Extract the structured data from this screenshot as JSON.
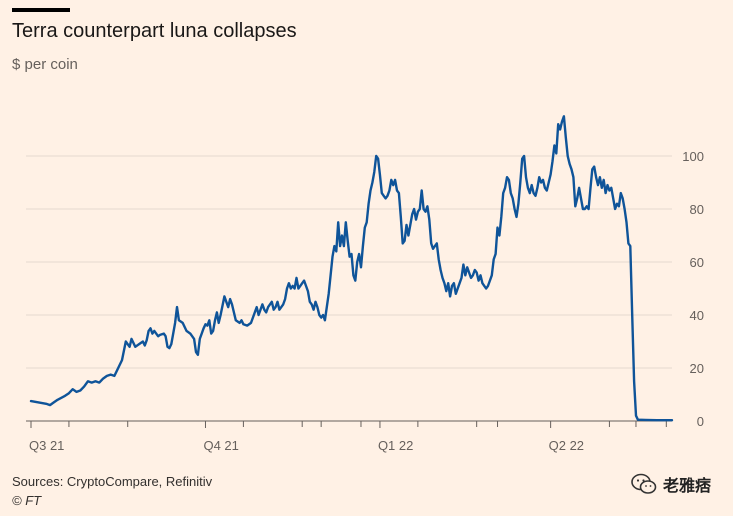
{
  "header": {
    "title": "Terra counterpart luna collapses",
    "subtitle": "$ per coin"
  },
  "footer": {
    "source": "Sources: CryptoCompare, Refinitiv",
    "copyright": "© FT"
  },
  "watermark": {
    "text": "老雅痞",
    "icon": "wechat-icon"
  },
  "colors": {
    "background": "#fff1e5",
    "line": "#0f5499",
    "grid": "#e6d9ce",
    "axis": "#66605c",
    "tick_text": "#66605c"
  },
  "chart_data": {
    "type": "line",
    "title": "Terra counterpart luna collapses",
    "ylabel": "$ per coin",
    "xlabel": "",
    "xlim": [
      0,
      338
    ],
    "ylim": [
      0,
      120
    ],
    "yticks": [
      0,
      20,
      40,
      60,
      80,
      100
    ],
    "grid": true,
    "xticks": [
      {
        "label": "Q3 21",
        "day": 0
      },
      {
        "label": "Q4 21",
        "day": 92
      },
      {
        "label": "Q1 22",
        "day": 184
      },
      {
        "label": "Q2 22",
        "day": 274
      }
    ],
    "minor_xticks": [
      20,
      51,
      112,
      143,
      153,
      174,
      204,
      235,
      246,
      305,
      319,
      335
    ],
    "series": [
      {
        "name": "Luna",
        "points": [
          [
            0,
            7.5
          ],
          [
            4,
            7
          ],
          [
            8,
            6.5
          ],
          [
            10,
            6
          ],
          [
            12,
            7
          ],
          [
            14,
            8
          ],
          [
            18,
            9.5
          ],
          [
            20,
            10.5
          ],
          [
            22,
            12
          ],
          [
            24,
            11
          ],
          [
            26,
            11.5
          ],
          [
            28,
            13
          ],
          [
            30,
            15
          ],
          [
            32,
            14.5
          ],
          [
            34,
            15
          ],
          [
            36,
            14.5
          ],
          [
            38,
            16
          ],
          [
            40,
            17
          ],
          [
            42,
            17.5
          ],
          [
            44,
            17
          ],
          [
            46,
            20
          ],
          [
            48,
            23
          ],
          [
            50,
            30
          ],
          [
            52,
            28
          ],
          [
            53,
            31
          ],
          [
            55,
            28
          ],
          [
            57,
            29
          ],
          [
            59,
            30
          ],
          [
            60,
            28.5
          ],
          [
            61,
            30.5
          ],
          [
            62,
            34
          ],
          [
            63,
            35
          ],
          [
            64,
            33
          ],
          [
            65,
            34
          ],
          [
            67,
            32
          ],
          [
            68,
            32.5
          ],
          [
            70,
            33
          ],
          [
            71,
            32
          ],
          [
            72,
            28
          ],
          [
            73,
            27.5
          ],
          [
            74,
            29
          ],
          [
            75,
            33
          ],
          [
            76,
            37
          ],
          [
            77,
            43
          ],
          [
            78,
            38
          ],
          [
            80,
            37
          ],
          [
            82,
            34
          ],
          [
            84,
            33
          ],
          [
            86,
            31
          ],
          [
            87,
            26
          ],
          [
            88,
            25
          ],
          [
            89,
            31
          ],
          [
            90,
            33
          ],
          [
            91,
            35
          ],
          [
            92,
            36.5
          ],
          [
            93,
            36
          ],
          [
            94,
            38
          ],
          [
            95,
            33
          ],
          [
            96,
            34
          ],
          [
            97,
            38
          ],
          [
            98,
            41
          ],
          [
            99,
            37
          ],
          [
            100,
            40
          ],
          [
            102,
            47
          ],
          [
            103,
            45
          ],
          [
            104,
            43
          ],
          [
            105,
            46
          ],
          [
            106,
            44
          ],
          [
            107,
            41
          ],
          [
            108,
            38
          ],
          [
            110,
            37
          ],
          [
            111,
            38
          ],
          [
            112,
            36.5
          ],
          [
            114,
            36
          ],
          [
            116,
            37
          ],
          [
            118,
            41
          ],
          [
            119,
            43
          ],
          [
            120,
            40
          ],
          [
            121,
            42
          ],
          [
            122,
            44
          ],
          [
            123,
            42
          ],
          [
            124,
            41
          ],
          [
            125,
            43
          ],
          [
            127,
            45
          ],
          [
            128,
            42
          ],
          [
            129,
            43
          ],
          [
            130,
            45
          ],
          [
            131,
            42
          ],
          [
            132,
            43
          ],
          [
            133,
            44
          ],
          [
            134,
            46
          ],
          [
            135,
            50
          ],
          [
            136,
            52
          ],
          [
            137,
            50
          ],
          [
            138,
            51
          ],
          [
            139,
            50
          ],
          [
            140,
            54
          ],
          [
            141,
            50
          ],
          [
            142,
            51
          ],
          [
            143,
            52
          ],
          [
            144,
            53
          ],
          [
            145,
            51
          ],
          [
            146,
            49
          ],
          [
            147,
            45
          ],
          [
            148,
            44
          ],
          [
            149,
            42
          ],
          [
            150,
            45
          ],
          [
            151,
            43
          ],
          [
            152,
            40
          ],
          [
            153,
            39
          ],
          [
            154,
            40
          ],
          [
            155,
            38
          ],
          [
            156,
            43
          ],
          [
            157,
            48
          ],
          [
            158,
            55
          ],
          [
            159,
            62
          ],
          [
            160,
            66
          ],
          [
            161,
            64
          ],
          [
            162,
            75
          ],
          [
            163,
            66
          ],
          [
            164,
            70
          ],
          [
            165,
            66
          ],
          [
            166,
            75
          ],
          [
            167,
            68
          ],
          [
            168,
            62
          ],
          [
            169,
            63
          ],
          [
            170,
            55
          ],
          [
            171,
            53
          ],
          [
            172,
            60
          ],
          [
            173,
            63
          ],
          [
            174,
            58
          ],
          [
            175,
            66
          ],
          [
            176,
            73
          ],
          [
            177,
            75
          ],
          [
            178,
            82
          ],
          [
            179,
            87
          ],
          [
            180,
            90
          ],
          [
            181,
            94
          ],
          [
            182,
            100
          ],
          [
            183,
            99
          ],
          [
            184,
            93
          ],
          [
            185,
            86
          ],
          [
            186,
            85
          ],
          [
            187,
            84
          ],
          [
            188,
            85
          ],
          [
            189,
            87
          ],
          [
            190,
            91
          ],
          [
            191,
            89
          ],
          [
            192,
            91
          ],
          [
            193,
            87
          ],
          [
            194,
            86
          ],
          [
            195,
            77
          ],
          [
            196,
            67
          ],
          [
            197,
            68
          ],
          [
            198,
            74
          ],
          [
            199,
            70
          ],
          [
            200,
            74
          ],
          [
            201,
            78
          ],
          [
            202,
            80
          ],
          [
            203,
            76
          ],
          [
            204,
            79
          ],
          [
            205,
            80
          ],
          [
            206,
            87
          ],
          [
            207,
            80
          ],
          [
            208,
            79
          ],
          [
            209,
            81
          ],
          [
            210,
            76
          ],
          [
            211,
            67
          ],
          [
            212,
            65
          ],
          [
            213,
            66
          ],
          [
            214,
            67
          ],
          [
            215,
            61
          ],
          [
            216,
            57
          ],
          [
            217,
            54
          ],
          [
            218,
            52
          ],
          [
            219,
            49
          ],
          [
            220,
            52
          ],
          [
            221,
            47
          ],
          [
            222,
            51
          ],
          [
            223,
            52
          ],
          [
            224,
            48
          ],
          [
            225,
            50
          ],
          [
            226,
            52
          ],
          [
            227,
            54
          ],
          [
            228,
            59
          ],
          [
            229,
            55
          ],
          [
            230,
            58
          ],
          [
            231,
            56
          ],
          [
            232,
            54
          ],
          [
            233,
            55
          ],
          [
            234,
            57
          ],
          [
            235,
            56
          ],
          [
            236,
            53
          ],
          [
            237,
            55
          ],
          [
            238,
            52
          ],
          [
            239,
            51
          ],
          [
            240,
            50
          ],
          [
            241,
            51
          ],
          [
            242,
            53
          ],
          [
            243,
            55
          ],
          [
            244,
            61
          ],
          [
            245,
            63
          ],
          [
            246,
            73
          ],
          [
            247,
            70
          ],
          [
            248,
            77
          ],
          [
            249,
            86
          ],
          [
            250,
            88
          ],
          [
            251,
            92
          ],
          [
            252,
            91
          ],
          [
            253,
            86
          ],
          [
            254,
            84
          ],
          [
            255,
            80
          ],
          [
            256,
            77
          ],
          [
            257,
            82
          ],
          [
            258,
            90
          ],
          [
            259,
            99
          ],
          [
            260,
            100
          ],
          [
            261,
            92
          ],
          [
            262,
            88
          ],
          [
            263,
            86
          ],
          [
            264,
            89
          ],
          [
            265,
            86
          ],
          [
            266,
            85
          ],
          [
            267,
            88
          ],
          [
            268,
            92
          ],
          [
            269,
            90
          ],
          [
            270,
            91
          ],
          [
            271,
            88
          ],
          [
            272,
            87
          ],
          [
            273,
            90
          ],
          [
            274,
            93
          ],
          [
            275,
            98
          ],
          [
            276,
            104
          ],
          [
            277,
            101
          ],
          [
            278,
            112
          ],
          [
            279,
            110
          ],
          [
            280,
            113
          ],
          [
            281,
            115
          ],
          [
            282,
            107
          ],
          [
            283,
            100
          ],
          [
            284,
            97
          ],
          [
            285,
            95
          ],
          [
            286,
            92
          ],
          [
            287,
            81
          ],
          [
            288,
            84
          ],
          [
            289,
            88
          ],
          [
            290,
            84
          ],
          [
            291,
            80
          ],
          [
            292,
            80
          ],
          [
            293,
            81
          ],
          [
            294,
            80
          ],
          [
            295,
            88
          ],
          [
            296,
            95
          ],
          [
            297,
            96
          ],
          [
            298,
            92
          ],
          [
            299,
            89
          ],
          [
            300,
            92
          ],
          [
            301,
            88
          ],
          [
            302,
            91
          ],
          [
            303,
            86
          ],
          [
            304,
            89
          ],
          [
            305,
            87
          ],
          [
            306,
            88
          ],
          [
            307,
            84
          ],
          [
            308,
            80
          ],
          [
            309,
            82
          ],
          [
            310,
            81
          ],
          [
            311,
            86
          ],
          [
            312,
            84
          ],
          [
            313,
            80
          ],
          [
            314,
            75
          ],
          [
            315,
            67
          ],
          [
            316,
            66
          ],
          [
            317,
            40
          ],
          [
            318,
            15
          ],
          [
            319,
            2
          ],
          [
            320,
            0.5
          ],
          [
            324,
            0.4
          ],
          [
            330,
            0.3
          ],
          [
            338,
            0.3
          ]
        ]
      }
    ]
  }
}
